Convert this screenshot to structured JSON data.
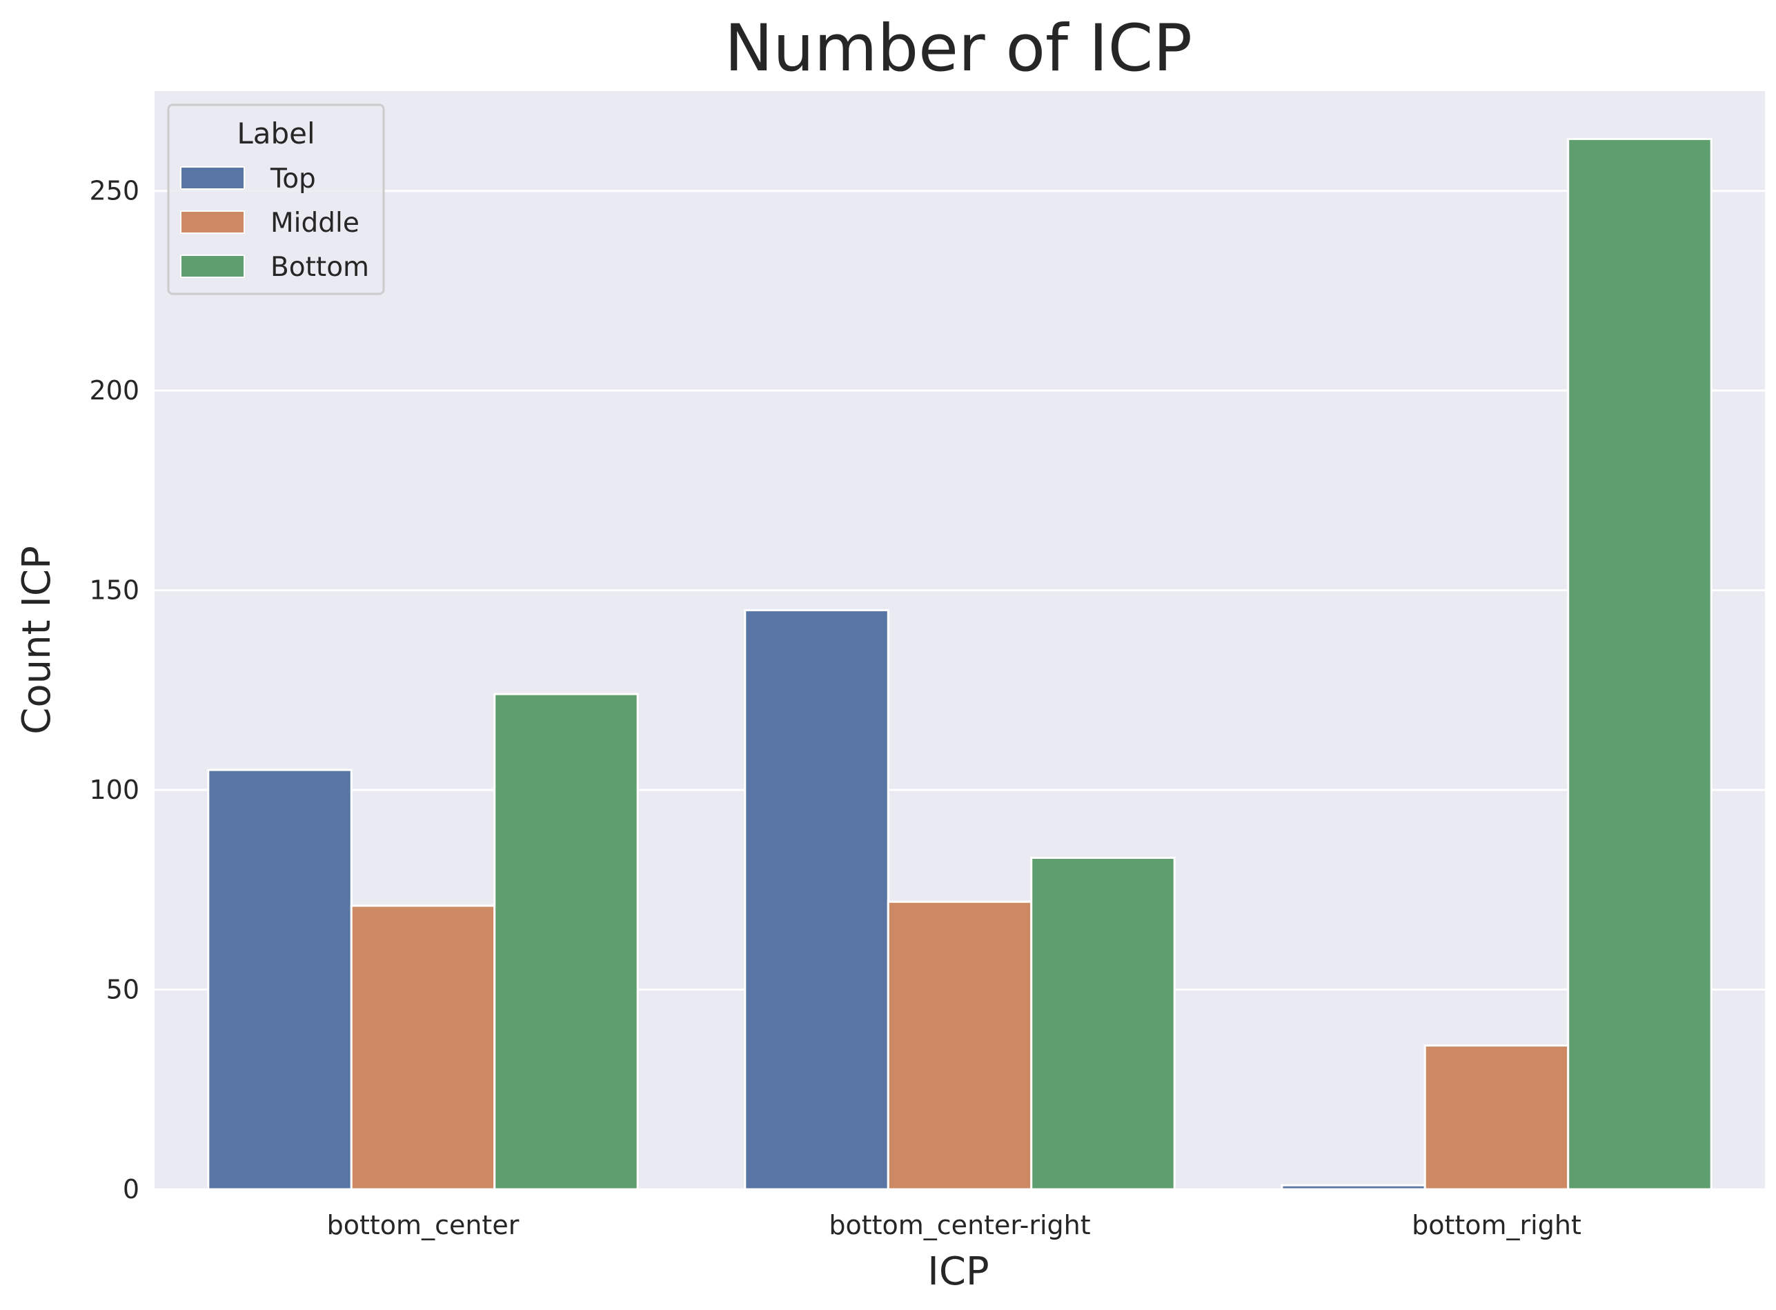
{
  "chart_data": {
    "type": "bar",
    "title": "Number of ICP",
    "xlabel": "ICP",
    "ylabel": "Count ICP",
    "categories": [
      "bottom_center",
      "bottom_center-right",
      "bottom_right"
    ],
    "series": [
      {
        "name": "Top",
        "values": [
          105,
          145,
          1
        ],
        "color": "#5975a4"
      },
      {
        "name": "Middle",
        "values": [
          71,
          72,
          36
        ],
        "color": "#cc8963"
      },
      {
        "name": "Bottom",
        "values": [
          124,
          83,
          263
        ],
        "color": "#5f9e6e"
      }
    ],
    "ylim": [
      0,
      275
    ],
    "yticks": [
      0,
      50,
      100,
      150,
      200,
      250
    ],
    "grid": true,
    "legend": {
      "title": "Label",
      "position": "top-left"
    },
    "background_color": "#eaeaf2",
    "grid_color": "#ffffff"
  }
}
